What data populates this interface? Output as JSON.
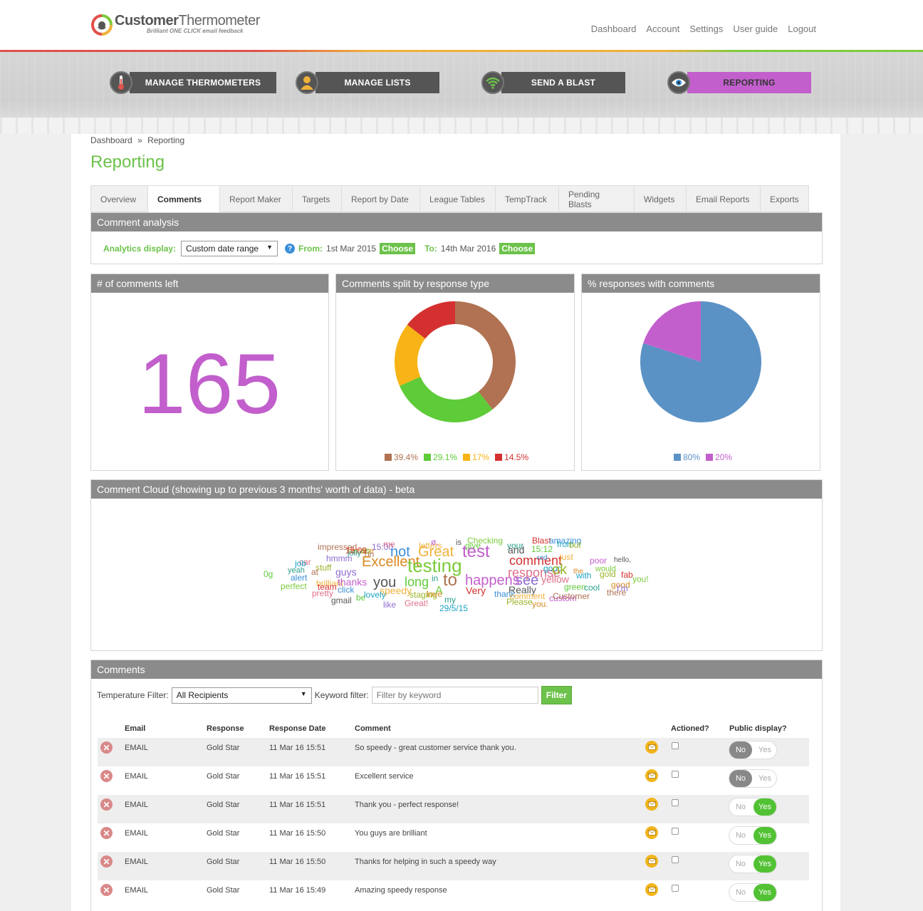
{
  "brand": {
    "name_bold": "Customer",
    "name_thin": "Thermometer",
    "tagline": "Brilliant ONE CLICK email feedback"
  },
  "topnav": [
    "Dashboard",
    "Account",
    "Settings",
    "User guide",
    "Logout"
  ],
  "mainnav": [
    {
      "label": "MANAGE THERMOMETERS",
      "icon": "thermometer-icon",
      "active": false
    },
    {
      "label": "MANAGE LISTS",
      "icon": "user-icon",
      "active": false
    },
    {
      "label": "SEND A BLAST",
      "icon": "wifi-icon",
      "active": false
    },
    {
      "label": "REPORTING",
      "icon": "eye-icon",
      "active": true
    }
  ],
  "breadcrumb": {
    "home": "Dashboard",
    "sep": "»",
    "current": "Reporting"
  },
  "page_title": "Reporting",
  "tabs": [
    "Overview",
    "Comments",
    "Report Maker",
    "Targets",
    "Report by Date",
    "League Tables",
    "TempTrack",
    "Pending Blasts",
    "Widgets",
    "Email Reports",
    "Exports"
  ],
  "active_tab": "Comments",
  "analysis": {
    "title": "Comment analysis",
    "display_label": "Analytics display:",
    "display_value": "Custom date range",
    "from_label": "From:",
    "from_value": "1st Mar 2015",
    "to_label": "To:",
    "to_value": "14th Mar 2016",
    "choose_label": "Choose"
  },
  "panels": {
    "count_title": "# of comments left",
    "count_value": "165",
    "split_title": "Comments split by response type",
    "pct_title": "% responses with comments"
  },
  "chart_data": [
    {
      "type": "pie",
      "variant": "donut",
      "title": "Comments split by response type",
      "values": [
        39.4,
        29.1,
        17,
        14.5
      ],
      "labels": [
        "39.4%",
        "29.1%",
        "17%",
        "14.5%"
      ],
      "colors": [
        "#b07252",
        "#5ecb38",
        "#f8b416",
        "#d4302f"
      ],
      "legend": "bottom"
    },
    {
      "type": "pie",
      "title": "% responses with comments",
      "values": [
        80,
        20
      ],
      "labels": [
        "80%",
        "20%"
      ],
      "colors": [
        "#5b92c6",
        "#c25fcc"
      ],
      "legend": "bottom"
    }
  ],
  "cloud": {
    "title": "Comment Cloud (showing up to previous 3 months' worth of data) - beta",
    "words": [
      "Checking",
      "Blast",
      "amazing",
      "letters",
      "ø,",
      "is",
      "give",
      "your",
      "impressed",
      "15:00",
      "me",
      "from",
      "but",
      "service",
      "us",
      "15:09",
      "not",
      "Great",
      "test",
      "and",
      "15:12",
      "jolly",
      "on",
      "hmmm",
      "car",
      "job",
      "stuff",
      "Excellent",
      "testing",
      "comment",
      "red",
      "just",
      "poor",
      "hello,",
      "0g",
      "yeah",
      "at",
      "guys",
      "response",
      "good",
      "ok",
      "the",
      "would",
      "fab",
      "alert",
      "brilliant",
      "thanks",
      "you",
      "long",
      "in",
      "to",
      "see",
      "yellow",
      "with",
      "gold",
      "good",
      "perfect",
      "team",
      "click",
      "speedy",
      "happens",
      "Really",
      "green",
      "cool",
      "there",
      "I'm",
      "pretty",
      "lovely",
      "staging",
      "love",
      "A",
      "Very",
      "thank",
      "comment",
      "custom",
      "gmail",
      "be",
      "my",
      "Customer",
      "like",
      "Great!",
      "29/5/15",
      "Please",
      "you.",
      "you!"
    ]
  },
  "comments": {
    "title": "Comments",
    "temp_filter_label": "Temperature Filter:",
    "temp_filter_value": "All Recipients",
    "keyword_label": "Keyword filter:",
    "keyword_placeholder": "Filter by keyword",
    "filter_button": "Filter",
    "headers": {
      "email": "Email",
      "response": "Response",
      "date": "Response Date",
      "comment": "Comment",
      "actioned": "Actioned?",
      "public": "Public display?"
    },
    "toggle_no": "No",
    "toggle_yes": "Yes",
    "rows": [
      {
        "email": "EMAIL",
        "response": "Gold Star",
        "date": "11 Mar 16 15:51",
        "comment": "So speedy - great customer service thank you.",
        "public": "No"
      },
      {
        "email": "EMAIL",
        "response": "Gold Star",
        "date": "11 Mar 16 15:51",
        "comment": "Excellent service",
        "public": "No"
      },
      {
        "email": "EMAIL",
        "response": "Gold Star",
        "date": "11 Mar 16 15:51",
        "comment": "Thank you - perfect response!",
        "public": "Yes"
      },
      {
        "email": "EMAIL",
        "response": "Gold Star",
        "date": "11 Mar 16 15:50",
        "comment": "You guys are brilliant",
        "public": "Yes"
      },
      {
        "email": "EMAIL",
        "response": "Gold Star",
        "date": "11 Mar 16 15:50",
        "comment": "Thanks for helping in such a speedy way",
        "public": "Yes"
      },
      {
        "email": "EMAIL",
        "response": "Gold Star",
        "date": "11 Mar 16 15:49",
        "comment": "Amazing speedy response",
        "public": "Yes"
      }
    ]
  }
}
